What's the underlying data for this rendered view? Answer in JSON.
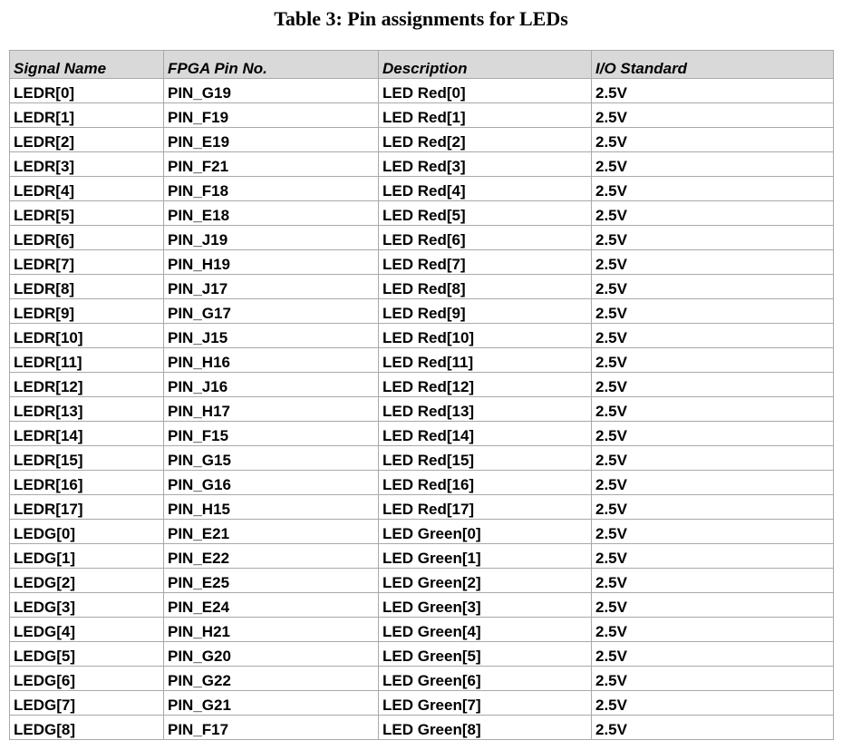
{
  "caption": "Table 3: Pin assignments for LEDs",
  "table": {
    "headers": [
      "Signal Name",
      "FPGA Pin No.",
      "Description",
      "I/O Standard"
    ],
    "rows": [
      [
        "LEDR[0]",
        "PIN_G19",
        "LED Red[0]",
        "2.5V"
      ],
      [
        "LEDR[1]",
        "PIN_F19",
        "LED Red[1]",
        "2.5V"
      ],
      [
        "LEDR[2]",
        "PIN_E19",
        "LED Red[2]",
        "2.5V"
      ],
      [
        "LEDR[3]",
        "PIN_F21",
        "LED Red[3]",
        "2.5V"
      ],
      [
        "LEDR[4]",
        "PIN_F18",
        "LED Red[4]",
        "2.5V"
      ],
      [
        "LEDR[5]",
        "PIN_E18",
        "LED Red[5]",
        "2.5V"
      ],
      [
        "LEDR[6]",
        "PIN_J19",
        "LED Red[6]",
        "2.5V"
      ],
      [
        "LEDR[7]",
        "PIN_H19",
        "LED Red[7]",
        "2.5V"
      ],
      [
        "LEDR[8]",
        "PIN_J17",
        "LED Red[8]",
        "2.5V"
      ],
      [
        "LEDR[9]",
        "PIN_G17",
        "LED Red[9]",
        "2.5V"
      ],
      [
        "LEDR[10]",
        "PIN_J15",
        "LED Red[10]",
        "2.5V"
      ],
      [
        "LEDR[11]",
        "PIN_H16",
        "LED Red[11]",
        "2.5V"
      ],
      [
        "LEDR[12]",
        "PIN_J16",
        "LED Red[12]",
        "2.5V"
      ],
      [
        "LEDR[13]",
        "PIN_H17",
        "LED Red[13]",
        "2.5V"
      ],
      [
        "LEDR[14]",
        "PIN_F15",
        "LED Red[14]",
        "2.5V"
      ],
      [
        "LEDR[15]",
        "PIN_G15",
        "LED Red[15]",
        "2.5V"
      ],
      [
        "LEDR[16]",
        "PIN_G16",
        "LED Red[16]",
        "2.5V"
      ],
      [
        "LEDR[17]",
        "PIN_H15",
        "LED Red[17]",
        "2.5V"
      ],
      [
        "LEDG[0]",
        "PIN_E21",
        "LED Green[0]",
        "2.5V"
      ],
      [
        "LEDG[1]",
        "PIN_E22",
        "LED Green[1]",
        "2.5V"
      ],
      [
        "LEDG[2]",
        "PIN_E25",
        "LED Green[2]",
        "2.5V"
      ],
      [
        "LEDG[3]",
        "PIN_E24",
        "LED Green[3]",
        "2.5V"
      ],
      [
        "LEDG[4]",
        "PIN_H21",
        "LED Green[4]",
        "2.5V"
      ],
      [
        "LEDG[5]",
        "PIN_G20",
        "LED Green[5]",
        "2.5V"
      ],
      [
        "LEDG[6]",
        "PIN_G22",
        "LED Green[6]",
        "2.5V"
      ],
      [
        "LEDG[7]",
        "PIN_G21",
        "LED Green[7]",
        "2.5V"
      ],
      [
        "LEDG[8]",
        "PIN_F17",
        "LED Green[8]",
        "2.5V"
      ]
    ]
  }
}
